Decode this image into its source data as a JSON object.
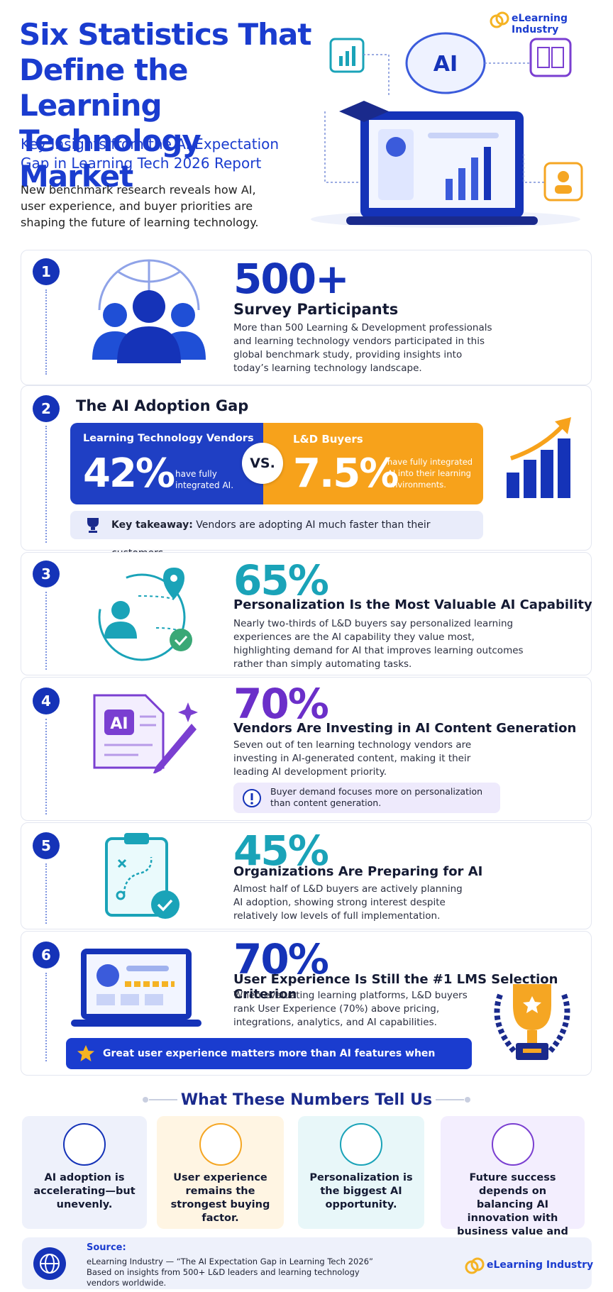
{
  "header": {
    "logo": "eLearning Industry",
    "title": "Six Statistics That Define the Learning Technology Market",
    "subtitle": "Key Insights from the AI Expectation Gap in Learning Tech 2026 Report",
    "intro": "New benchmark research reveals how AI, user experience, and buyer priorities are shaping the future of learning technology.",
    "illustration_label": "AI"
  },
  "stats": [
    {
      "number": "1",
      "figure": "500+",
      "heading": "Survey Participants",
      "body": "More than 500 Learning & Development professionals and learning technology vendors participated in this global benchmark study, providing insights into today’s learning technology landscape."
    },
    {
      "number": "2",
      "heading": "The AI Adoption Gap",
      "vendors": {
        "label": "Learning Technology Vendors",
        "figure": "42%",
        "note": "have fully integrated AI."
      },
      "vs": "VS.",
      "buyers": {
        "label": "L&D Buyers",
        "figure": "7.5%",
        "note": "have fully integrated AI into their learning environments."
      },
      "takeaway_label": "Key takeaway:",
      "takeaway": "Vendors are adopting AI much faster than their customers."
    },
    {
      "number": "3",
      "figure": "65%",
      "heading": "Personalization Is the Most Valuable AI Capability",
      "body": "Nearly two-thirds of L&D buyers say personalized learning experiences are the AI capability they value most, highlighting demand for AI that improves learning outcomes rather than simply automating tasks."
    },
    {
      "number": "4",
      "figure": "70%",
      "heading": "Vendors Are Investing in AI Content Generation",
      "body": "Seven out of ten learning technology vendors are investing in AI-generated content, making it their leading AI development priority.",
      "note": "Buyer demand focuses more on personalization than content generation.",
      "icon_label": "AI"
    },
    {
      "number": "5",
      "figure": "45%",
      "heading": "Organizations Are Preparing for AI",
      "body": "Almost half of L&D buyers are actively planning AI adoption, showing strong interest despite relatively low levels of full implementation."
    },
    {
      "number": "6",
      "figure": "70%",
      "heading": "User Experience Is Still the #1 LMS Selection Criterion",
      "body": "When evaluating learning platforms, L&D buyers rank User Experience (70%) above pricing, integrations, analytics, and AI capabilities.",
      "banner": "Great user experience matters more than AI features when choosing an LMS."
    }
  ],
  "summary": {
    "title": "What These Numbers Tell Us",
    "items": [
      "AI adoption is accelerating—but unevenly.",
      "User experience remains the strongest buying factor.",
      "Personalization is the biggest AI opportunity.",
      "Future success depends on balancing AI innovation with business value and learner experience."
    ]
  },
  "source": {
    "label": "Source:",
    "lines": [
      "eLearning Industry — “The AI Expectation Gap in Learning Tech 2026”",
      "Based on insights from 500+ L&D leaders and learning technology vendors worldwide."
    ],
    "logo": "eLearning Industry"
  }
}
